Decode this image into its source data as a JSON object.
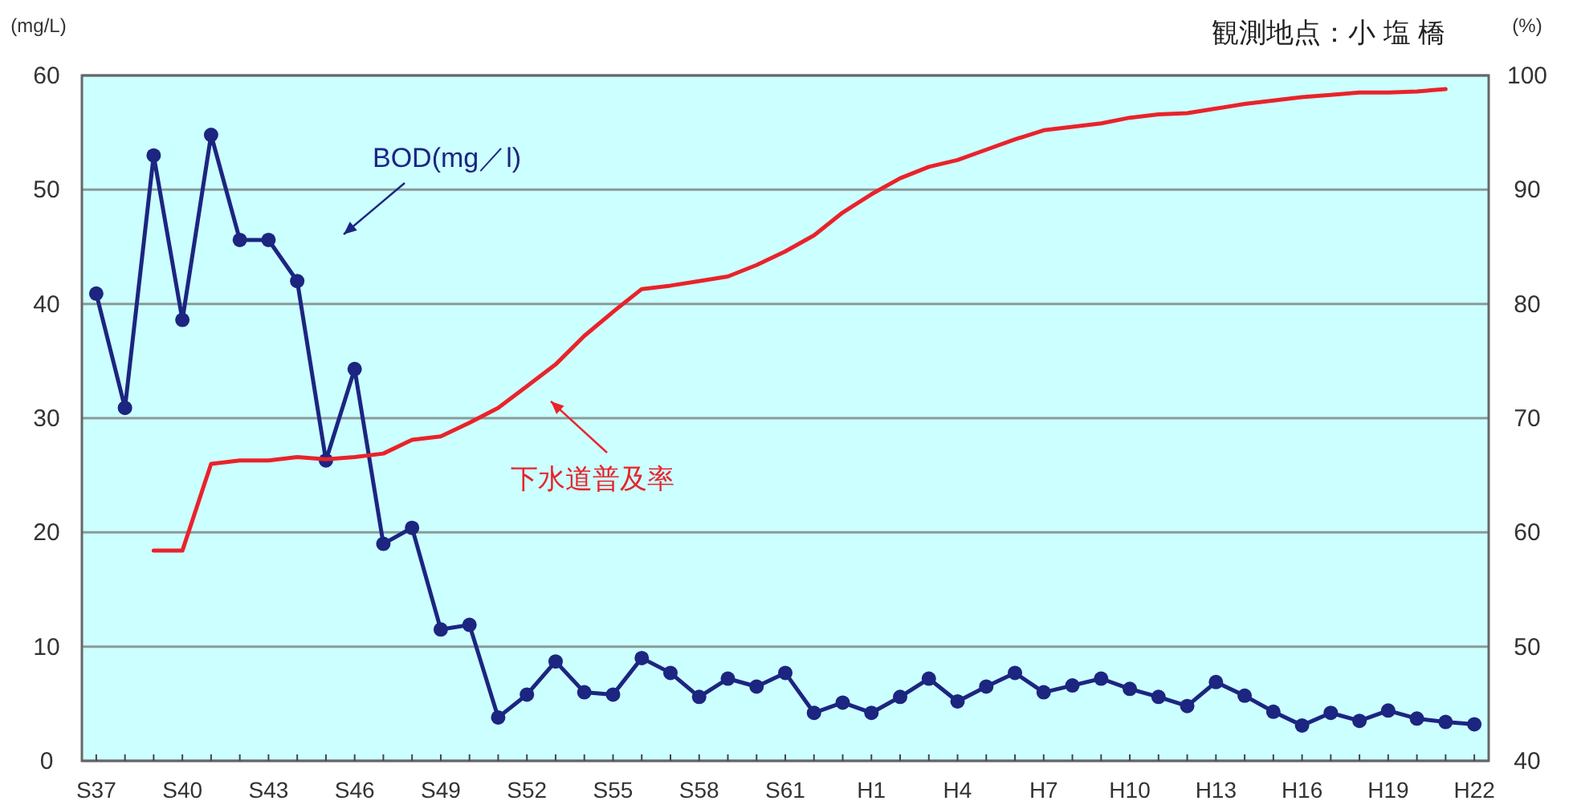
{
  "chart_data": {
    "type": "line",
    "subtitle": "観測地点：小 塩 橋",
    "ylabel": "(mg/L)",
    "y2label": "(%)",
    "categories": [
      "S37",
      null,
      null,
      "S40",
      null,
      null,
      "S43",
      null,
      null,
      "S46",
      null,
      null,
      "S49",
      null,
      null,
      "S52",
      null,
      null,
      "S55",
      null,
      null,
      "S58",
      null,
      null,
      "S61",
      null,
      null,
      "H1",
      null,
      null,
      "H4",
      null,
      null,
      "H7",
      null,
      null,
      "H10",
      null,
      null,
      "H13",
      null,
      null,
      "H16",
      null,
      null,
      "H19",
      null,
      null,
      "H22"
    ],
    "series": [
      {
        "name": "BOD(mg／l)",
        "color": "#1c2580",
        "marker": "circle",
        "values": [
          40.9,
          30.9,
          53,
          38.6,
          54.8,
          45.6,
          45.6,
          42.0,
          26.3,
          34.3,
          19.0,
          20.4,
          11.5,
          11.9,
          3.8,
          5.8,
          8.7,
          6.0,
          5.8,
          9.0,
          7.7,
          5.6,
          7.2,
          6.5,
          7.7,
          4.2,
          5.1,
          4.2,
          5.6,
          7.2,
          5.2,
          6.5,
          7.7,
          6.0,
          6.6,
          7.2,
          6.3,
          5.6,
          4.8,
          6.9,
          5.7,
          4.3,
          3.1,
          4.2,
          3.5,
          4.4,
          3.7,
          3.4,
          3.2
        ]
      },
      {
        "name": "下水道普及率",
        "color": "#e8232b",
        "marker": "none",
        "axis": "y2",
        "values": [
          null,
          null,
          58.4,
          58.4,
          66.0,
          66.3,
          66.3,
          66.6,
          66.4,
          66.6,
          66.9,
          68.1,
          68.4,
          69.6,
          70.9,
          72.8,
          74.7,
          77.2,
          79.3,
          81.3,
          81.6,
          82.0,
          82.4,
          83.4,
          84.6,
          86.0,
          88.0,
          89.6,
          91.0,
          92.0,
          92.6,
          93.5,
          94.4,
          95.2,
          95.5,
          95.8,
          96.3,
          96.6,
          96.7,
          97.1,
          97.5,
          97.8,
          98.1,
          98.3,
          98.5,
          98.5,
          98.6,
          98.8,
          null
        ]
      }
    ],
    "ylim": [
      0,
      60
    ],
    "yticks": [
      0,
      10,
      20,
      30,
      40,
      50,
      60
    ],
    "y2lim": [
      40,
      100
    ],
    "y2ticks": [
      40,
      50,
      60,
      70,
      80,
      90,
      100
    ],
    "grid": "y"
  }
}
